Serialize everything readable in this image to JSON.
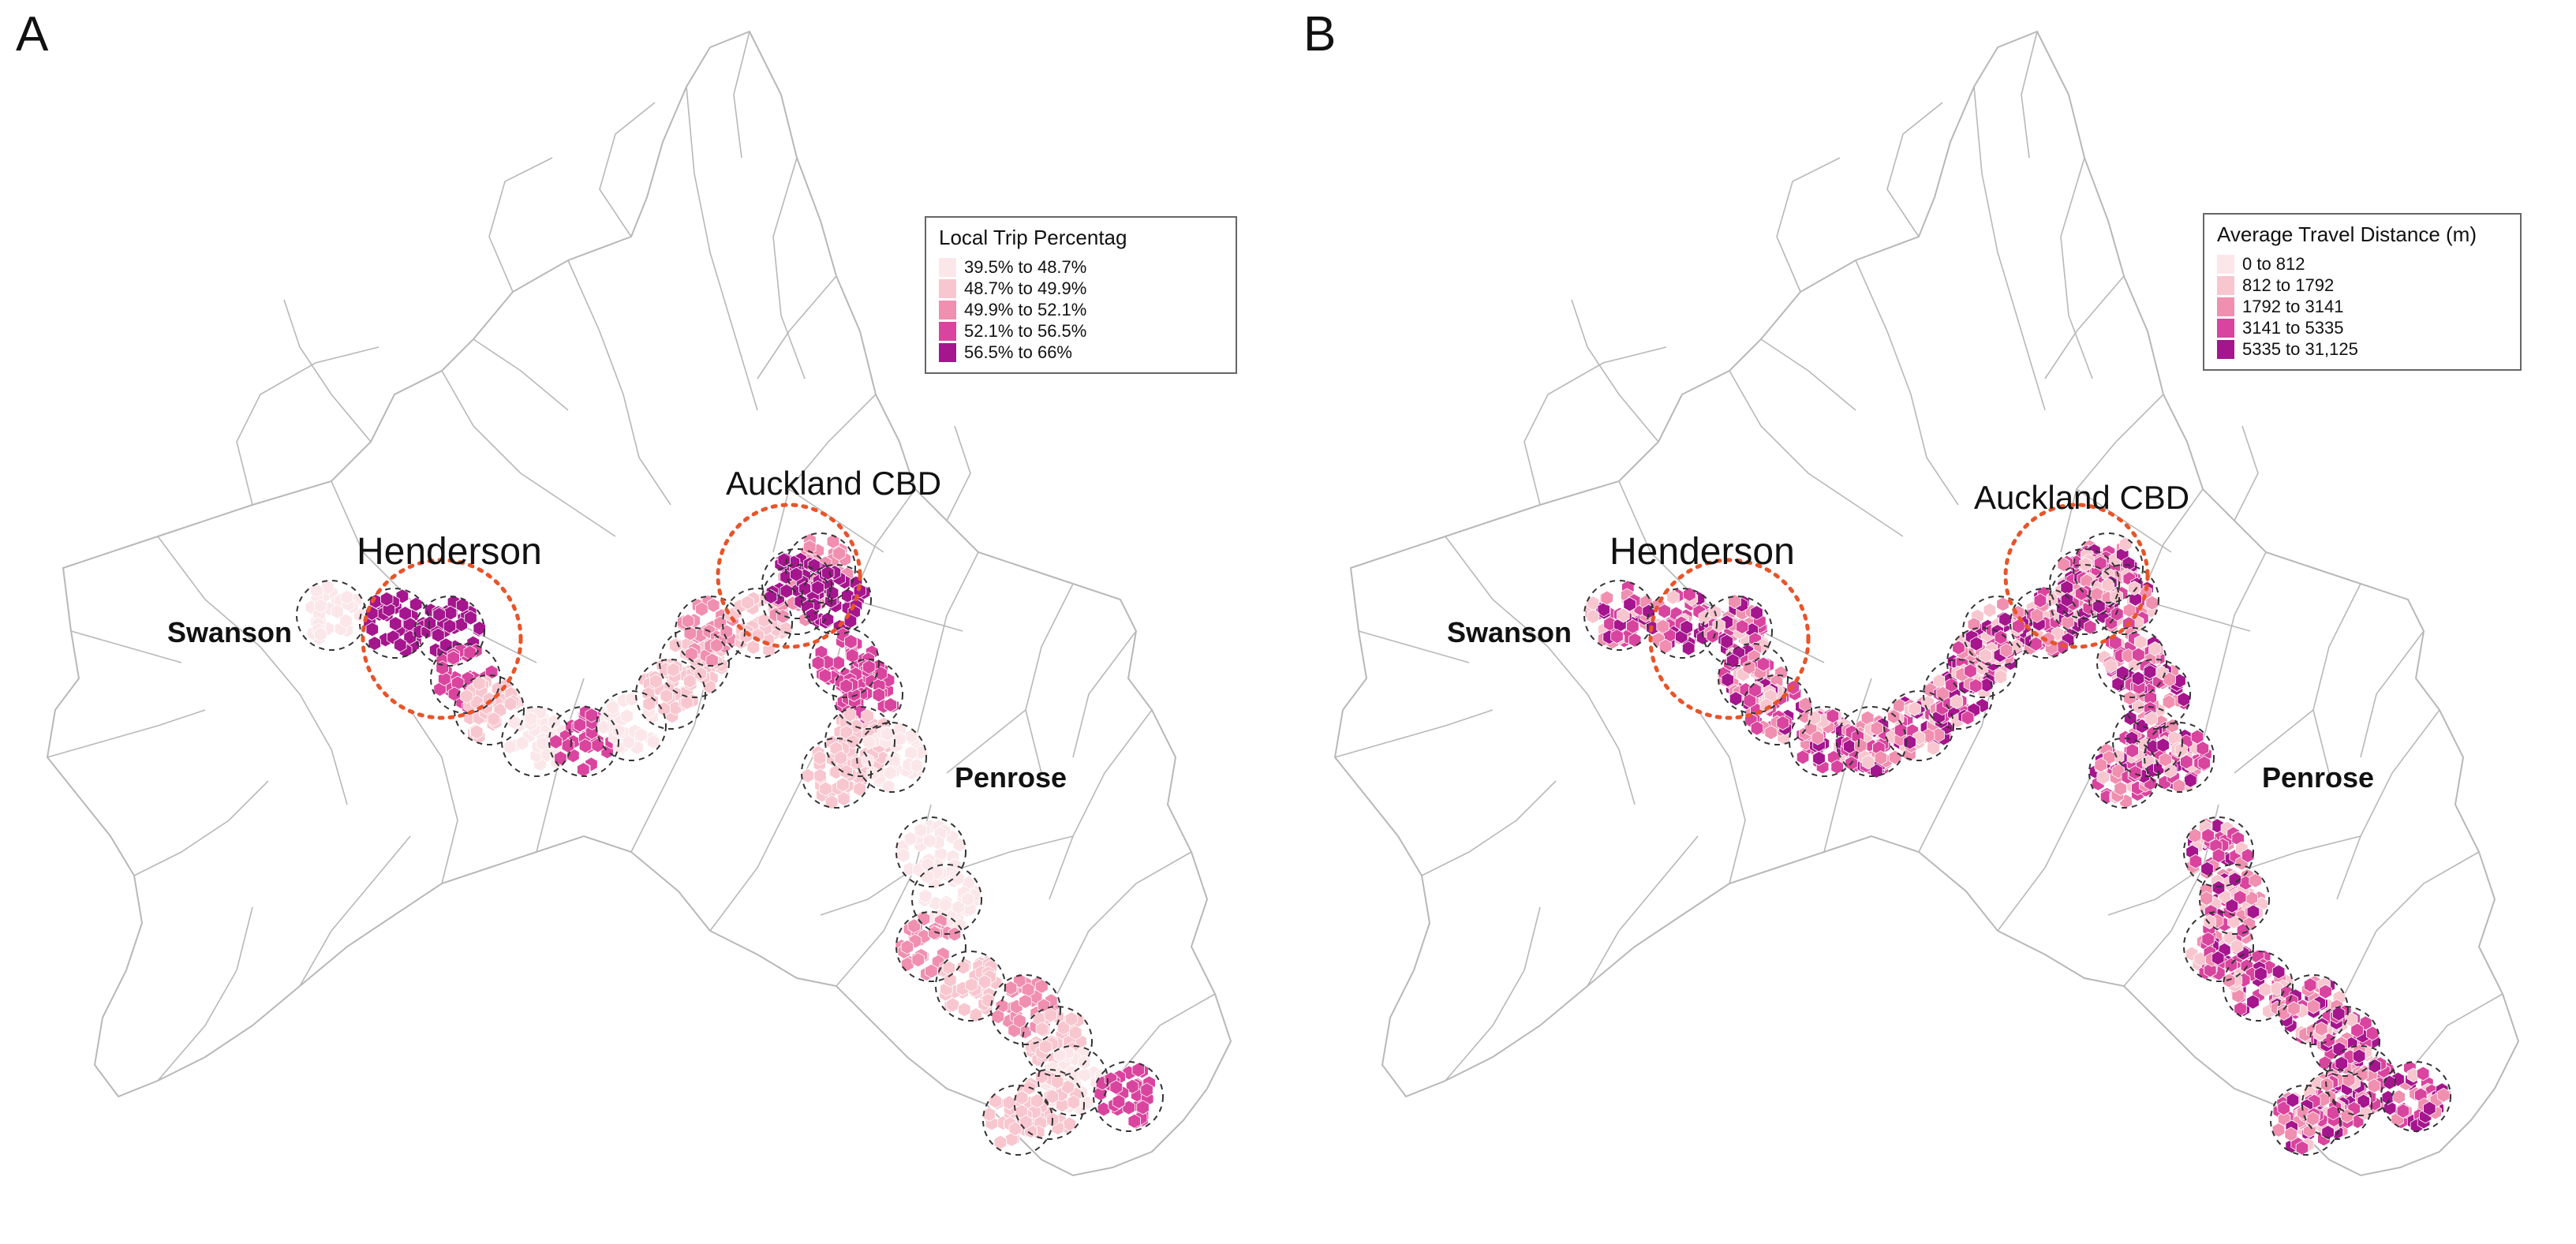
{
  "colors": {
    "boundary": "#b8b8b8",
    "hotspot_circle": "#e8542a",
    "station_circle": "#333333",
    "scale": [
      "#fbe7e9",
      "#f8c6cf",
      "#f08fb0",
      "#d9449e",
      "#a5158d"
    ]
  },
  "panels": [
    {
      "letter": "A",
      "legend": {
        "title": "Local Trip Percentag",
        "items": [
          {
            "label": "39.5% to 48.7%",
            "color": "#fbe7e9"
          },
          {
            "label": "48.7% to 49.9%",
            "color": "#f8c6cf"
          },
          {
            "label": "49.9% to 52.1%",
            "color": "#f08fb0"
          },
          {
            "label": "52.1% to 56.5%",
            "color": "#d9449e"
          },
          {
            "label": "56.5% to 66%",
            "color": "#a5158d"
          }
        ]
      },
      "places": {
        "swanson": "Swanson",
        "henderson": "Henderson",
        "cbd": "Auckland CBD",
        "penrose": "Penrose"
      },
      "station_classes": [
        0,
        4,
        4,
        3,
        1,
        0,
        3,
        0,
        1,
        1,
        2,
        1,
        2,
        2,
        4,
        4,
        3,
        3,
        1,
        1,
        0,
        0,
        0,
        2,
        1,
        2,
        1,
        0,
        1,
        1,
        3
      ]
    },
    {
      "letter": "B",
      "legend": {
        "title": "Average Travel Distance (m)",
        "items": [
          {
            "label": "0 to 812",
            "color": "#fbe7e9"
          },
          {
            "label": "812 to 1792",
            "color": "#f8c6cf"
          },
          {
            "label": "1792  to 3141",
            "color": "#f08fb0"
          },
          {
            "label": "3141  to 5335",
            "color": "#d9449e"
          },
          {
            "label": "5335  to 31,125",
            "color": "#a5158d"
          }
        ]
      },
      "places": {
        "swanson": "Swanson",
        "henderson": "Henderson",
        "cbd": "Auckland CBD",
        "penrose": "Penrose"
      },
      "station_classes": []
    }
  ]
}
